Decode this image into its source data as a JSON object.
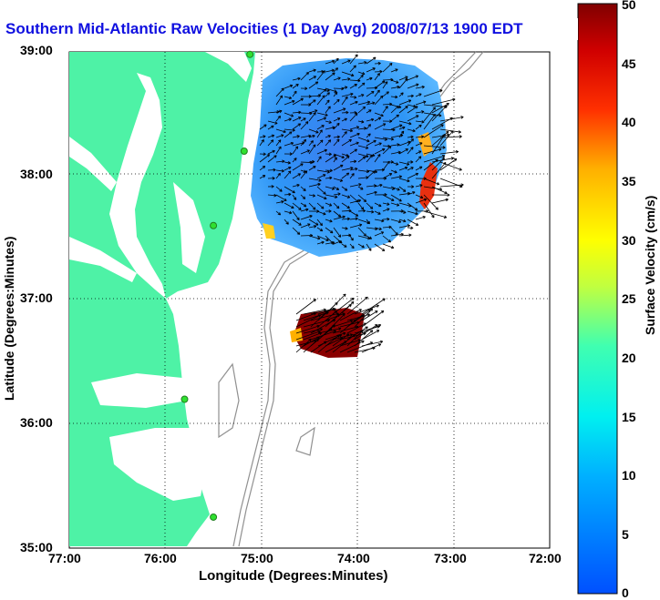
{
  "title": "Southern Mid-Atlantic Raw Velocities (1 Day Avg) 2008/07/13 1900 EDT",
  "xlabel": "Longitude (Degrees:Minutes)",
  "ylabel": "Latitude (Degrees:Minutes)",
  "x_ticks": [
    "77:00",
    "76:00",
    "75:00",
    "74:00",
    "73:00",
    "72:00"
  ],
  "y_ticks": [
    "39:00",
    "38:00",
    "37:00",
    "36:00",
    "35:00"
  ],
  "colorbar": {
    "label": "Surface Velocity (cm/s)",
    "ticks": [
      "0",
      "5",
      "10",
      "15",
      "20",
      "25",
      "30",
      "35",
      "40",
      "45",
      "50"
    ],
    "range": [
      0,
      50
    ]
  },
  "map_extent": {
    "lon": [
      -77,
      -72
    ],
    "lat": [
      35,
      39
    ]
  },
  "colors": {
    "land": "#4ef2a6",
    "title": "#1010e0",
    "coast_line": "#2a7a50",
    "bathymetry": "#909090"
  },
  "stations": [
    {
      "lon": -75.12,
      "lat": 38.98
    },
    {
      "lon": -75.18,
      "lat": 38.2
    },
    {
      "lon": -75.5,
      "lat": 37.6
    },
    {
      "lon": -75.8,
      "lat": 36.2
    },
    {
      "lon": -75.5,
      "lat": 35.25
    }
  ]
}
